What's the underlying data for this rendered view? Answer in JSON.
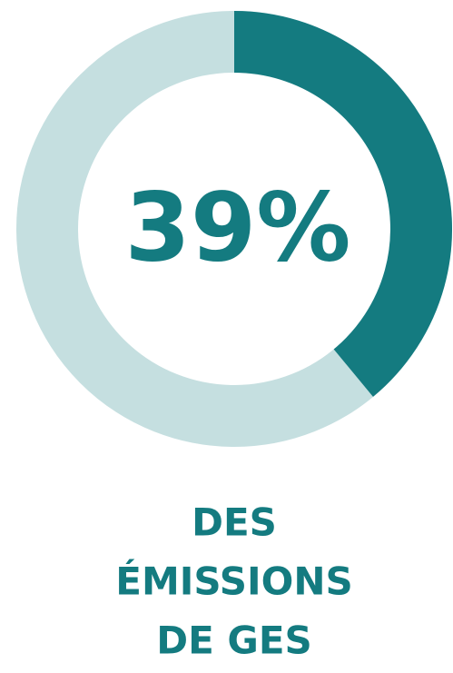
{
  "chart_data": {
    "type": "donut",
    "values": [
      39
    ],
    "value_labels": [
      "39%"
    ],
    "color": "#147b80",
    "track_color": "#c5dfe0",
    "caption": [
      "DES",
      "ÉMISSIONS",
      "DE GES"
    ]
  }
}
